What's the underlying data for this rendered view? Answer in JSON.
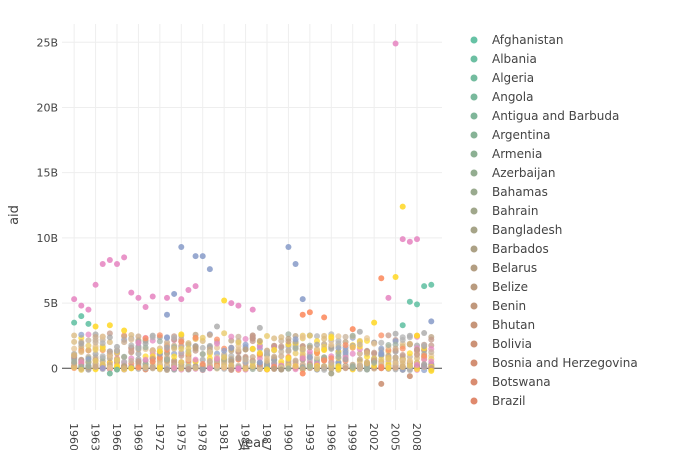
{
  "chart_data": {
    "type": "scatter",
    "title": "",
    "xlabel": "year",
    "ylabel": "aid",
    "xlim": [
      1958.3,
      2011.5
    ],
    "ylim": [
      -3.2,
      26.4
    ],
    "y_unit": "billions",
    "x_ticks": [
      1960,
      1963,
      1966,
      1969,
      1972,
      1975,
      1978,
      1981,
      1984,
      1987,
      1990,
      1993,
      1996,
      1999,
      2002,
      2005,
      2008
    ],
    "x_tick_labels": [
      "1960",
      "1963",
      "1966",
      "1969",
      "1972",
      "1975",
      "1978",
      "1981",
      "1984",
      "1987",
      "1990",
      "1993",
      "1996",
      "1999",
      "2002",
      "2005",
      "2008"
    ],
    "y_ticks": [
      0,
      5,
      10,
      15,
      20,
      25
    ],
    "y_tick_labels": [
      "0",
      "5B",
      "10B",
      "15B",
      "20B",
      "25B"
    ],
    "grid": true,
    "zero_line": true,
    "legend_position": "right",
    "series": [
      {
        "name": "Afghanistan",
        "color": "#66c2a5"
      },
      {
        "name": "Albania",
        "color": "#6cbfa2"
      },
      {
        "name": "Algeria",
        "color": "#73bc9f"
      },
      {
        "name": "Angola",
        "color": "#79b99c"
      },
      {
        "name": "Antigua and Barbuda",
        "color": "#7fb699"
      },
      {
        "name": "Argentina",
        "color": "#86b396"
      },
      {
        "name": "Armenia",
        "color": "#8cb093"
      },
      {
        "name": "Azerbaijan",
        "color": "#93ad90"
      },
      {
        "name": "Bahamas",
        "color": "#99aa8e"
      },
      {
        "name": "Bahrain",
        "color": "#a0a78b"
      },
      {
        "name": "Bangladesh",
        "color": "#a6a488"
      },
      {
        "name": "Barbados",
        "color": "#aca185"
      },
      {
        "name": "Belarus",
        "color": "#b39e82"
      },
      {
        "name": "Belize",
        "color": "#b99b7f"
      },
      {
        "name": "Benin",
        "color": "#c0987c"
      },
      {
        "name": "Bhutan",
        "color": "#c69579"
      },
      {
        "name": "Bolivia",
        "color": "#cc9276"
      },
      {
        "name": "Bosnia and Herzegovina",
        "color": "#d38f73"
      },
      {
        "name": "Botswana",
        "color": "#d98c70"
      },
      {
        "name": "Brazil",
        "color": "#e0896d"
      }
    ],
    "points": [
      {
        "x": 1960,
        "y": 5.3,
        "color": "#e78ac3"
      },
      {
        "x": 1961,
        "y": 4.8,
        "color": "#e78ac3"
      },
      {
        "x": 1962,
        "y": 4.5,
        "color": "#e78ac3"
      },
      {
        "x": 1963,
        "y": 6.4,
        "color": "#e78ac3"
      },
      {
        "x": 1964,
        "y": 8.0,
        "color": "#e78ac3"
      },
      {
        "x": 1965,
        "y": 8.3,
        "color": "#e78ac3"
      },
      {
        "x": 1966,
        "y": 8.0,
        "color": "#e78ac3"
      },
      {
        "x": 1967,
        "y": 8.5,
        "color": "#e78ac3"
      },
      {
        "x": 1968,
        "y": 5.8,
        "color": "#e78ac3"
      },
      {
        "x": 1969,
        "y": 5.4,
        "color": "#e78ac3"
      },
      {
        "x": 1970,
        "y": 4.7,
        "color": "#e78ac3"
      },
      {
        "x": 1971,
        "y": 5.5,
        "color": "#e78ac3"
      },
      {
        "x": 1973,
        "y": 5.4,
        "color": "#e78ac3"
      },
      {
        "x": 1975,
        "y": 5.3,
        "color": "#e78ac3"
      },
      {
        "x": 1976,
        "y": 6.0,
        "color": "#e78ac3"
      },
      {
        "x": 1977,
        "y": 6.3,
        "color": "#e78ac3"
      },
      {
        "x": 1982,
        "y": 5.0,
        "color": "#e78ac3"
      },
      {
        "x": 1983,
        "y": 4.8,
        "color": "#e78ac3"
      },
      {
        "x": 1985,
        "y": 4.5,
        "color": "#e78ac3"
      },
      {
        "x": 2005,
        "y": 24.9,
        "color": "#e78ac3"
      },
      {
        "x": 2006,
        "y": 9.9,
        "color": "#e78ac3"
      },
      {
        "x": 2007,
        "y": 9.7,
        "color": "#e78ac3"
      },
      {
        "x": 2008,
        "y": 9.9,
        "color": "#e78ac3"
      },
      {
        "x": 2004,
        "y": 5.4,
        "color": "#e78ac3"
      },
      {
        "x": 1975,
        "y": 9.3,
        "color": "#8da0cb"
      },
      {
        "x": 1977,
        "y": 8.6,
        "color": "#8da0cb"
      },
      {
        "x": 1978,
        "y": 8.6,
        "color": "#8da0cb"
      },
      {
        "x": 1979,
        "y": 7.6,
        "color": "#8da0cb"
      },
      {
        "x": 1990,
        "y": 9.3,
        "color": "#8da0cb"
      },
      {
        "x": 1991,
        "y": 8.0,
        "color": "#8da0cb"
      },
      {
        "x": 1992,
        "y": 5.3,
        "color": "#8da0cb"
      },
      {
        "x": 1974,
        "y": 5.7,
        "color": "#8da0cb"
      },
      {
        "x": 1973,
        "y": 4.1,
        "color": "#8da0cb"
      },
      {
        "x": 2010,
        "y": 3.6,
        "color": "#8da0cb"
      },
      {
        "x": 2006,
        "y": 12.4,
        "color": "#ffd92f"
      },
      {
        "x": 2005,
        "y": 7.0,
        "color": "#ffd92f"
      },
      {
        "x": 2002,
        "y": 3.5,
        "color": "#ffd92f"
      },
      {
        "x": 1981,
        "y": 5.2,
        "color": "#ffd92f"
      },
      {
        "x": 1963,
        "y": 3.2,
        "color": "#ffd92f"
      },
      {
        "x": 1965,
        "y": 3.3,
        "color": "#ffd92f"
      },
      {
        "x": 1967,
        "y": 2.9,
        "color": "#ffd92f"
      },
      {
        "x": 1975,
        "y": 2.6,
        "color": "#ffd92f"
      },
      {
        "x": 2008,
        "y": 2.5,
        "color": "#ffd92f"
      },
      {
        "x": 1972,
        "y": 1.3,
        "color": "#ffd92f"
      },
      {
        "x": 1985,
        "y": 1.5,
        "color": "#ffd92f"
      },
      {
        "x": 1995,
        "y": 1.4,
        "color": "#ffd92f"
      },
      {
        "x": 2009,
        "y": 6.3,
        "color": "#66c2a5"
      },
      {
        "x": 2010,
        "y": 6.4,
        "color": "#66c2a5"
      },
      {
        "x": 2007,
        "y": 5.1,
        "color": "#66c2a5"
      },
      {
        "x": 2008,
        "y": 4.9,
        "color": "#66c2a5"
      },
      {
        "x": 2006,
        "y": 3.3,
        "color": "#66c2a5"
      },
      {
        "x": 1960,
        "y": 3.5,
        "color": "#66c2a5"
      },
      {
        "x": 1961,
        "y": 4.0,
        "color": "#66c2a5"
      },
      {
        "x": 1962,
        "y": 3.4,
        "color": "#66c2a5"
      },
      {
        "x": 1965,
        "y": -0.4,
        "color": "#79b99c"
      },
      {
        "x": 1966,
        "y": -0.1,
        "color": "#79b99c"
      },
      {
        "x": 2003,
        "y": 6.9,
        "color": "#fc8d62"
      },
      {
        "x": 1992,
        "y": 4.1,
        "color": "#fc8d62"
      },
      {
        "x": 1993,
        "y": 4.3,
        "color": "#fc8d62"
      },
      {
        "x": 1995,
        "y": 3.9,
        "color": "#fc8d62"
      },
      {
        "x": 1999,
        "y": 3.0,
        "color": "#fc8d62"
      },
      {
        "x": 1992,
        "y": -0.4,
        "color": "#fc8d62"
      },
      {
        "x": 2003,
        "y": -1.2,
        "color": "#cc9276"
      },
      {
        "x": 2007,
        "y": -0.6,
        "color": "#cc9276"
      },
      {
        "x": 1996,
        "y": -0.4,
        "color": "#a6a488"
      },
      {
        "x": 1989,
        "y": -0.1,
        "color": "#b39e82"
      },
      {
        "x": 2010,
        "y": -0.2,
        "color": "#ffd92f"
      },
      {
        "x": 1971,
        "y": 2.5,
        "color": "#b3b3b3"
      },
      {
        "x": 1980,
        "y": 3.2,
        "color": "#b3b3b3"
      },
      {
        "x": 1986,
        "y": 3.1,
        "color": "#b3b3b3"
      },
      {
        "x": 2000,
        "y": 2.8,
        "color": "#b3b3b3"
      },
      {
        "x": 2009,
        "y": 2.7,
        "color": "#b3b3b3"
      }
    ]
  },
  "bulk_palette": [
    "#c9a98a",
    "#b3b3b3",
    "#a6a6a6",
    "#d9b87c",
    "#e5c494",
    "#c7b299",
    "#ffd92f",
    "#e8c864",
    "#b9a07f",
    "#9fb0a0",
    "#c49a8a",
    "#e78ac3",
    "#8da0cb",
    "#fc8d62"
  ],
  "bulk_cloud": {
    "x_start": 1960,
    "x_end": 2010,
    "per_year": 20,
    "seed": 7
  }
}
